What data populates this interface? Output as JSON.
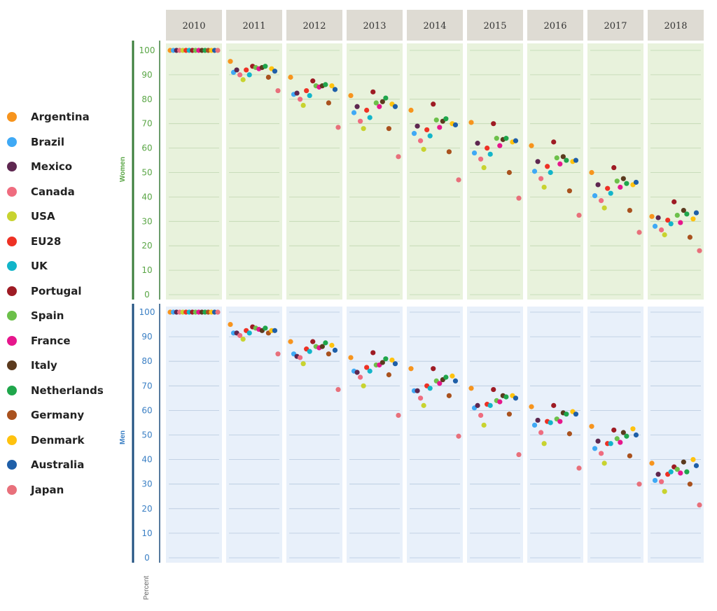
{
  "chart_data": {
    "type": "scatter",
    "years": [
      "2010",
      "2011",
      "2012",
      "2013",
      "2014",
      "2015",
      "2016",
      "2017",
      "2018"
    ],
    "yticks": [
      0,
      10,
      20,
      30,
      40,
      50,
      60,
      70,
      80,
      90,
      100
    ],
    "ylim": [
      0,
      100
    ],
    "unit_label": "Percent",
    "countries": [
      {
        "name": "Argentina",
        "color": "#f7941d"
      },
      {
        "name": "Brazil",
        "color": "#3fa9f5"
      },
      {
        "name": "Mexico",
        "color": "#5e2750"
      },
      {
        "name": "Canada",
        "color": "#ef6c7f"
      },
      {
        "name": "USA",
        "color": "#c8d32f"
      },
      {
        "name": "EU28",
        "color": "#ee3124"
      },
      {
        "name": "UK",
        "color": "#12b5c9"
      },
      {
        "name": "Portugal",
        "color": "#9e1b24"
      },
      {
        "name": "Spain",
        "color": "#6cc04a"
      },
      {
        "name": "France",
        "color": "#e6168c"
      },
      {
        "name": "Italy",
        "color": "#5b3a1e"
      },
      {
        "name": "Netherlands",
        "color": "#1fa64b"
      },
      {
        "name": "Germany",
        "color": "#a9521e"
      },
      {
        "name": "Denmark",
        "color": "#ffc20e"
      },
      {
        "name": "Australia",
        "color": "#1f5fa8"
      },
      {
        "name": "Japan",
        "color": "#e8707b"
      }
    ],
    "panels": [
      {
        "name": "Women",
        "values": {
          "Argentina": [
            100,
            95.5,
            89,
            81.5,
            75.5,
            70.5,
            61,
            50,
            32
          ],
          "Brazil": [
            100,
            91,
            82,
            74.5,
            66,
            58,
            50.5,
            40.5,
            28
          ],
          "Mexico": [
            100,
            92,
            82.5,
            77,
            69,
            62,
            54.5,
            45,
            31.5
          ],
          "Canada": [
            100,
            90,
            80,
            71,
            63,
            55.5,
            47.5,
            38.5,
            26.5
          ],
          "USA": [
            100,
            88,
            77.5,
            68,
            59.5,
            52,
            44,
            35.5,
            24.5
          ],
          "EU28": [
            100,
            92,
            83.5,
            75.5,
            67.5,
            60,
            52.5,
            43.5,
            30.5
          ],
          "UK": [
            100,
            90,
            81.5,
            72.5,
            65,
            57.5,
            50,
            41.5,
            29
          ],
          "Portugal": [
            100,
            93.5,
            87.5,
            83,
            78,
            70,
            62.5,
            52,
            38
          ],
          "Spain": [
            100,
            93,
            85.5,
            78.5,
            71.5,
            64,
            56,
            46.5,
            32.5
          ],
          "France": [
            100,
            92.5,
            85,
            77,
            68.5,
            61,
            53.5,
            44,
            29.5
          ],
          "Italy": [
            100,
            93,
            85.5,
            79,
            71,
            63.5,
            56.5,
            47.5,
            34.5
          ],
          "Netherlands": [
            100,
            93.5,
            86,
            80.5,
            72,
            64,
            55,
            45.5,
            33
          ],
          "Germany": [
            100,
            89,
            78.5,
            68,
            58.5,
            50,
            42.5,
            34.5,
            23.5
          ],
          "Denmark": [
            100,
            92.5,
            85.5,
            78,
            70,
            62.5,
            54.5,
            45,
            31
          ],
          "Australia": [
            100,
            91.5,
            84,
            77,
            69.5,
            63,
            55,
            46,
            33.5
          ],
          "Japan": [
            100,
            83.5,
            68.5,
            56.5,
            47,
            39.5,
            32.5,
            25.5,
            18
          ]
        }
      },
      {
        "name": "Men",
        "values": {
          "Argentina": [
            100,
            95,
            88,
            81.5,
            77,
            69,
            61.5,
            53.5,
            38.5
          ],
          "Brazil": [
            100,
            91.5,
            83,
            76,
            68,
            61,
            54,
            44.5,
            31.5
          ],
          "Mexico": [
            100,
            91.5,
            82,
            75.5,
            68,
            62,
            56,
            47.5,
            34
          ],
          "Canada": [
            100,
            90.5,
            81.5,
            73.5,
            65,
            58,
            51,
            42.5,
            31
          ],
          "USA": [
            100,
            89,
            79,
            70,
            62,
            54,
            46.5,
            38.5,
            27
          ],
          "EU28": [
            100,
            92.5,
            85,
            77.5,
            70,
            62.5,
            55.5,
            46.5,
            34
          ],
          "UK": [
            100,
            91.5,
            84,
            76,
            69,
            62,
            55,
            46.5,
            35
          ],
          "Portugal": [
            100,
            94,
            88,
            83.5,
            77,
            68.5,
            62,
            52,
            37
          ],
          "Spain": [
            100,
            93.5,
            86,
            78.5,
            72,
            64,
            56.5,
            48.5,
            36
          ],
          "France": [
            100,
            93,
            85.5,
            78.5,
            71,
            63.5,
            55.5,
            47,
            34.5
          ],
          "Italy": [
            100,
            92.5,
            86,
            79.5,
            72.5,
            66,
            59,
            51,
            39
          ],
          "Netherlands": [
            100,
            93.5,
            87.5,
            81,
            73.5,
            65.5,
            58.5,
            49.5,
            35
          ],
          "Germany": [
            100,
            91.5,
            83,
            74.5,
            66,
            58.5,
            50.5,
            41.5,
            30
          ],
          "Denmark": [
            100,
            92.5,
            86.5,
            80.5,
            74,
            66,
            59.5,
            52.5,
            40
          ],
          "Australia": [
            100,
            92.5,
            84.5,
            79,
            72,
            65,
            58.5,
            50,
            37.5
          ],
          "Japan": [
            100,
            83,
            68.5,
            58,
            49.5,
            42,
            36.5,
            30,
            21.5
          ]
        }
      }
    ]
  }
}
